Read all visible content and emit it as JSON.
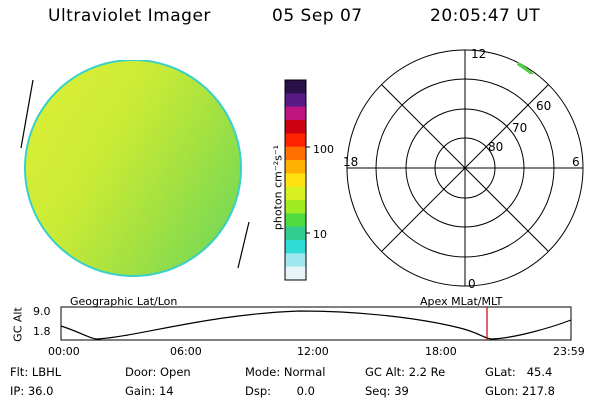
{
  "header": {
    "instrument": "Ultraviolet Imager",
    "date": "05 Sep 07",
    "time": "20:05:47 UT"
  },
  "colorbar": {
    "unit_label": "photon cm⁻²s⁻¹",
    "tick_labels": [
      "100",
      "10"
    ],
    "colors": [
      "#2a1048",
      "#5a1a86",
      "#c01480",
      "#cc0010",
      "#ff2200",
      "#ff7000",
      "#ffb000",
      "#ffe010",
      "#d8f020",
      "#a0ec20",
      "#50dc40",
      "#30cc90",
      "#30dcd8",
      "#a0e8f0",
      "#e8f4f8"
    ]
  },
  "polar": {
    "clock_labels": {
      "top": "12",
      "left": "18",
      "right": "6",
      "bottom": "0"
    },
    "lat_labels": [
      "60",
      "70",
      "80"
    ]
  },
  "timeline": {
    "left_title": "Geographic Lat/Lon",
    "right_title": "Apex MLat/MLT",
    "axis_title": "GC Alt",
    "y_ticks": [
      "9.0",
      "1.8"
    ],
    "x_ticks": [
      "00:00",
      "06:00",
      "12:00",
      "18:00",
      "23:59"
    ],
    "marker_color": "#cc0000"
  },
  "info": {
    "flt": "Flt: LBHL",
    "ip": "IP: 36.0",
    "door": "Door: Open",
    "gain": "Gain: 14",
    "mode": "Mode: Normal",
    "dsp": "Dsp:       0.0",
    "gcalt": "GC Alt: 2.2 Re",
    "seq": "Seq: 39",
    "glat": "GLat:   45.4",
    "glon": "GLon: 217.8"
  }
}
